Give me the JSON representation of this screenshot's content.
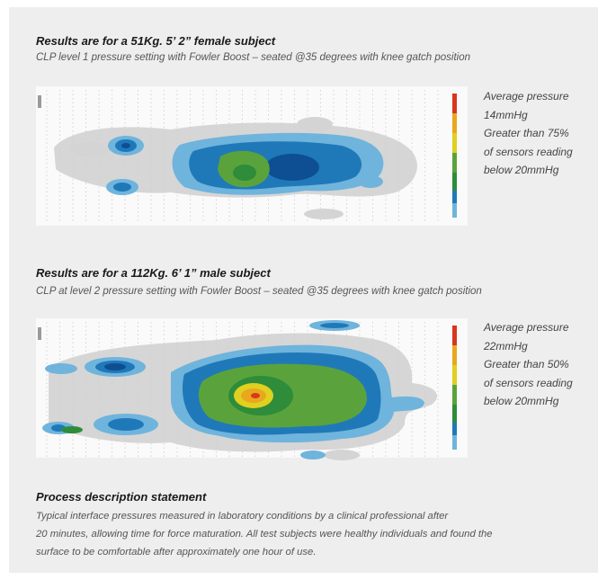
{
  "colors": {
    "panel_bg": "#eeeeee",
    "heatmap_scale": [
      "#c8c8c8",
      "#6fb4dc",
      "#1f79b9",
      "#0d4f92",
      "#5aa33c",
      "#2e8c3a",
      "#e0d020",
      "#e9a71d",
      "#d8361f"
    ]
  },
  "sections": [
    {
      "heading": "Results are for a 51Kg. 5’ 2” female subject",
      "subline": "CLP level 1 pressure setting with Fowler Boost – seated @35 degrees with knee gatch position",
      "stats": [
        "Average pressure",
        "14mmHg",
        "Greater than 75%",
        "of sensors reading",
        "below 20mmHg"
      ]
    },
    {
      "heading": "Results are for a 112Kg. 6’ 1” male subject",
      "subline": "CLP at level 2 pressure setting with Fowler Boost – seated @35 degrees with knee gatch position",
      "stats": [
        "Average pressure",
        "22mmHg",
        "Greater than 50%",
        "of sensors reading",
        "below 20mmHg"
      ]
    }
  ],
  "process": {
    "heading": "Process description statement",
    "lines": [
      "Typical interface pressures measured in laboratory conditions by a clinical professional after",
      "20 minutes, allowing time for force maturation. All test subjects were healthy individuals and found the",
      "surface to be comfortable after approximately one hour of use."
    ]
  }
}
